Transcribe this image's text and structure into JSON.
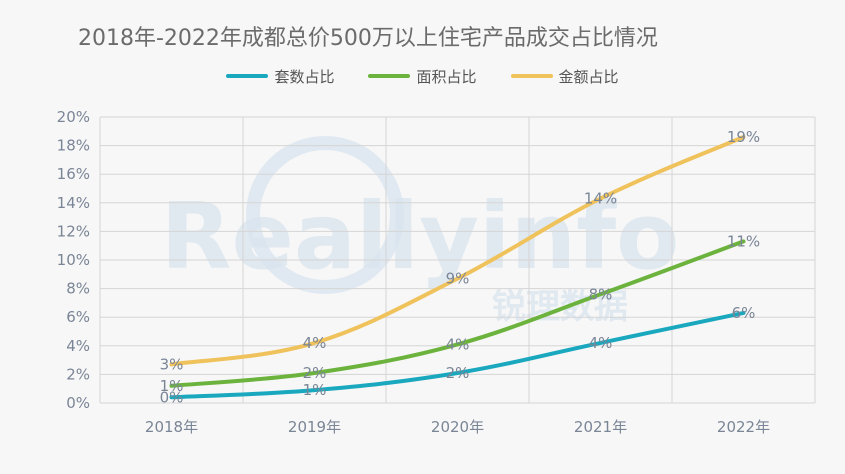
{
  "chart_data": {
    "type": "line",
    "title": "2018年-2022年成都总价500万以上住宅产品成交占比情况",
    "categories": [
      "2018年",
      "2019年",
      "2020年",
      "2021年",
      "2022年"
    ],
    "series": [
      {
        "name": "套数占比",
        "color": "#1aa8bf",
        "values": [
          0.4,
          0.9,
          2.1,
          4.2,
          6.3
        ],
        "labels": [
          "0%",
          "1%",
          "2%",
          "4%",
          "6%"
        ]
      },
      {
        "name": "面积占比",
        "color": "#6cb33e",
        "values": [
          1.2,
          2.1,
          4.1,
          7.6,
          11.3
        ],
        "labels": [
          "1%",
          "2%",
          "4%",
          "8%",
          "11%"
        ]
      },
      {
        "name": "金额占比",
        "color": "#efc25c",
        "values": [
          2.7,
          4.2,
          8.7,
          14.3,
          18.6
        ],
        "labels": [
          "3%",
          "4%",
          "9%",
          "14%",
          "19%"
        ]
      }
    ],
    "y_ticks": [
      "0%",
      "2%",
      "4%",
      "6%",
      "8%",
      "10%",
      "12%",
      "14%",
      "16%",
      "18%",
      "20%"
    ],
    "ylim": [
      0,
      20
    ],
    "grid": true,
    "legend_position": "top-center",
    "watermark": {
      "text": "Reallyinfo",
      "subtext": "锐理数据"
    }
  }
}
